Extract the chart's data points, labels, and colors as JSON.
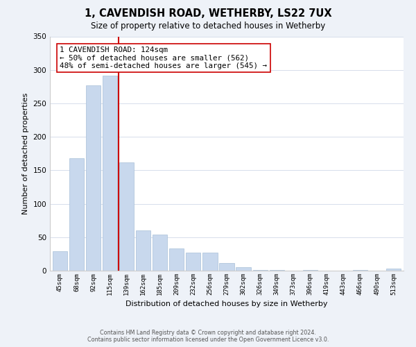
{
  "title": "1, CAVENDISH ROAD, WETHERBY, LS22 7UX",
  "subtitle": "Size of property relative to detached houses in Wetherby",
  "xlabel": "Distribution of detached houses by size in Wetherby",
  "ylabel": "Number of detached properties",
  "bar_labels": [
    "45sqm",
    "68sqm",
    "92sqm",
    "115sqm",
    "139sqm",
    "162sqm",
    "185sqm",
    "209sqm",
    "232sqm",
    "256sqm",
    "279sqm",
    "302sqm",
    "326sqm",
    "349sqm",
    "373sqm",
    "396sqm",
    "419sqm",
    "443sqm",
    "466sqm",
    "490sqm",
    "513sqm"
  ],
  "bar_values": [
    29,
    168,
    277,
    291,
    162,
    60,
    54,
    33,
    27,
    27,
    11,
    5,
    1,
    1,
    0,
    1,
    0,
    0,
    1,
    0,
    3
  ],
  "bar_color": "#c8d8ed",
  "bar_edge_color": "#a8bfd8",
  "vline_x": 3.5,
  "vline_color": "#cc0000",
  "annotation_title": "1 CAVENDISH ROAD: 124sqm",
  "annotation_line1": "← 50% of detached houses are smaller (562)",
  "annotation_line2": "48% of semi-detached houses are larger (545) →",
  "annotation_box_color": "#ffffff",
  "annotation_box_edge": "#cc0000",
  "ylim": [
    0,
    350
  ],
  "yticks": [
    0,
    50,
    100,
    150,
    200,
    250,
    300,
    350
  ],
  "footer1": "Contains HM Land Registry data © Crown copyright and database right 2024.",
  "footer2": "Contains public sector information licensed under the Open Government Licence v3.0.",
  "bg_color": "#eef2f8",
  "plot_bg_color": "#ffffff"
}
